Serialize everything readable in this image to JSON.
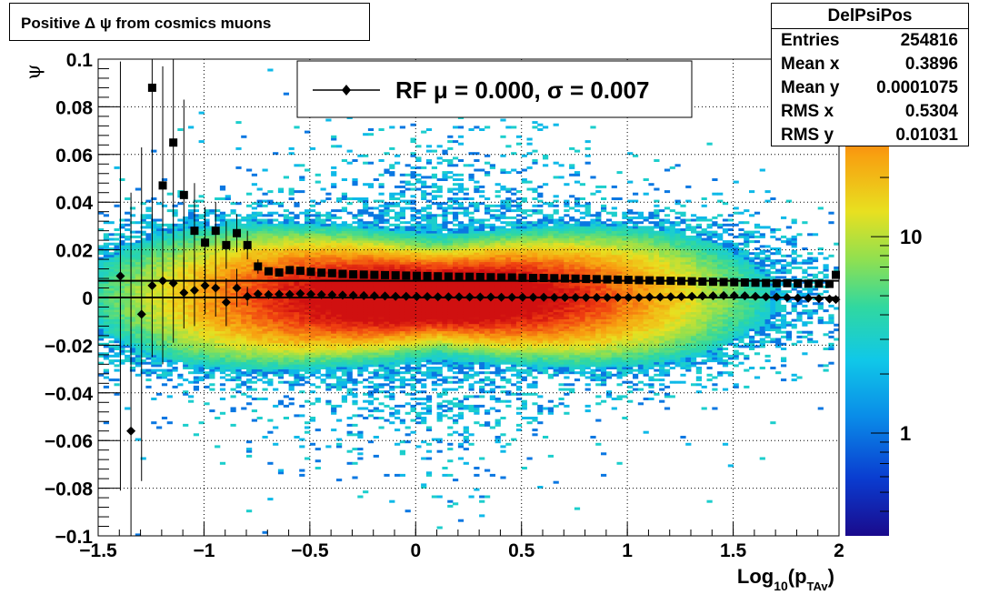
{
  "title": "Positive Δ ψ from cosmics muons",
  "stats": {
    "title": "DelPsiPos",
    "rows": [
      {
        "label": "Entries",
        "value": "254816"
      },
      {
        "label": "Mean x",
        "value": "0.3896"
      },
      {
        "label": "Mean y",
        "value": "0.0001075"
      },
      {
        "label": "RMS x",
        "value": "0.5304"
      },
      {
        "label": "RMS y",
        "value": "0.01031"
      }
    ]
  },
  "legend": {
    "label": "RF μ =  0.000, σ =   0.007"
  },
  "colors": {
    "marker": "#000000",
    "axis": "#000000",
    "grid": "#000000"
  },
  "chart_data": {
    "type": "heatmap",
    "title": "Positive Δ ψ from cosmics muons",
    "xlabel": "Log10(pTAv)",
    "xlabel_parts": {
      "main": "Log",
      "sub1": "10",
      "mid": "(p",
      "sub2": "TAv",
      "end": ")"
    },
    "ylabel": "ψ",
    "xlim": [
      -1.5,
      2
    ],
    "ylim": [
      -0.1,
      0.1
    ],
    "x_ticks": [
      -1.5,
      -1,
      -0.5,
      0,
      0.5,
      1,
      1.5,
      2
    ],
    "x_tick_labels": [
      "−1.5",
      "−1",
      "−0.5",
      "0",
      "0.5",
      "1",
      "1.5",
      "2"
    ],
    "y_ticks": [
      0.1,
      0.08,
      0.06,
      0.04,
      0.02,
      0,
      -0.02,
      -0.04,
      -0.06,
      -0.08,
      -0.1
    ],
    "y_tick_labels": [
      "0.1",
      "0.08",
      "0.06",
      "0.04",
      "0.02",
      "0",
      "−0.02",
      "−0.04",
      "−0.06",
      "−0.08",
      "−0.1"
    ],
    "grid": true,
    "colorbar": {
      "scale": "log",
      "range": [
        0.3,
        80
      ],
      "ticks": [
        1,
        10
      ],
      "tick_labels": [
        "1",
        "10"
      ]
    },
    "density_model": {
      "total_entries": 254816,
      "mean_x": 0.3896,
      "rms_x": 0.5304,
      "mean_y": 0.0001075,
      "rms_y": 0.01031
    },
    "series": [
      {
        "marker": "square",
        "x": [
          -1.245,
          -1.195,
          -1.145,
          -1.095,
          -1.045,
          -0.995,
          -0.945,
          -0.895,
          -0.845,
          -0.795,
          -0.745,
          -0.695,
          -0.645,
          -0.595,
          -0.545,
          -0.495,
          -0.445,
          -0.395,
          -0.345,
          -0.295,
          -0.245,
          -0.195,
          -0.145,
          -0.095,
          -0.045,
          0.005,
          0.055,
          0.105,
          0.155,
          0.205,
          0.255,
          0.305,
          0.355,
          0.405,
          0.455,
          0.505,
          0.555,
          0.605,
          0.655,
          0.705,
          0.755,
          0.805,
          0.855,
          0.905,
          0.955,
          1.005,
          1.055,
          1.105,
          1.155,
          1.205,
          1.255,
          1.305,
          1.355,
          1.405,
          1.455,
          1.505,
          1.555,
          1.605,
          1.655,
          1.705,
          1.755,
          1.805,
          1.855,
          1.905,
          1.955,
          1.985
        ],
        "y": [
          0.088,
          0.047,
          0.065,
          0.043,
          0.028,
          0.023,
          0.028,
          0.022,
          0.027,
          0.022,
          0.013,
          0.011,
          0.0105,
          0.0115,
          0.0112,
          0.0108,
          0.0104,
          0.0102,
          0.0099,
          0.0097,
          0.0096,
          0.0095,
          0.0094,
          0.0093,
          0.0092,
          0.0091,
          0.009,
          0.0089,
          0.0088,
          0.0087,
          0.0087,
          0.0086,
          0.0085,
          0.0084,
          0.0084,
          0.0083,
          0.0082,
          0.0082,
          0.0081,
          0.008,
          0.0079,
          0.0078,
          0.0077,
          0.0076,
          0.0075,
          0.0074,
          0.0073,
          0.0072,
          0.0071,
          0.007,
          0.0069,
          0.0068,
          0.0067,
          0.0066,
          0.0065,
          0.0064,
          0.0063,
          0.0062,
          0.0061,
          0.006,
          0.006,
          0.0059,
          0.0058,
          0.0058,
          0.0057,
          0.0095
        ],
        "err": [
          0.06,
          0.05,
          0.06,
          0.04,
          0.02,
          0.015,
          0.012,
          0.01,
          0.008,
          0.006,
          0.003
        ]
      },
      {
        "marker": "diamond",
        "x": [
          -1.395,
          -1.345,
          -1.295,
          -1.245,
          -1.195,
          -1.145,
          -1.095,
          -1.045,
          -0.995,
          -0.945,
          -0.895,
          -0.845,
          -0.795,
          -0.745,
          -0.695,
          -0.645,
          -0.595,
          -0.545,
          -0.495,
          -0.445,
          -0.395,
          -0.345,
          -0.295,
          -0.245,
          -0.195,
          -0.145,
          -0.095,
          -0.045,
          0.005,
          0.055,
          0.105,
          0.155,
          0.205,
          0.255,
          0.305,
          0.355,
          0.405,
          0.455,
          0.505,
          0.555,
          0.605,
          0.655,
          0.705,
          0.755,
          0.805,
          0.855,
          0.905,
          0.955,
          1.005,
          1.055,
          1.105,
          1.155,
          1.205,
          1.255,
          1.305,
          1.355,
          1.405,
          1.455,
          1.505,
          1.555,
          1.605,
          1.655,
          1.705,
          1.755,
          1.805,
          1.855,
          1.905,
          1.955,
          1.985
        ],
        "y": [
          0.009,
          -0.056,
          -0.007,
          0.005,
          0.007,
          0.006,
          0.002,
          0.003,
          0.005,
          0.004,
          -0.002,
          0.004,
          0.0005,
          0.0015,
          0.0012,
          0.0014,
          0.0013,
          0.0016,
          0.0014,
          0.0012,
          0.0011,
          0.001,
          0.0009,
          0.0008,
          0.0007,
          0.0006,
          0.0005,
          0.0005,
          0.0004,
          0.0004,
          0.0003,
          0.0003,
          0.0003,
          0.0002,
          0.0002,
          0.0002,
          0.0001,
          0.0001,
          0.0001,
          0.0001,
          0.0001,
          0.0,
          0.0,
          0.0,
          0.0,
          0.0,
          0.0,
          0.0,
          0.0,
          0.0,
          0.0002,
          0.0002,
          0.0003,
          0.0004,
          0.0005,
          0.0006,
          0.0007,
          0.0008,
          0.0008,
          0.0007,
          0.0005,
          0.0003,
          0.0002,
          0.0,
          -0.0002,
          -0.0003,
          -0.0005,
          -0.0006,
          -0.0008
        ],
        "err": [
          0.09,
          0.1,
          0.07,
          0.03,
          0.035,
          0.025,
          0.015,
          0.015,
          0.012,
          0.012,
          0.01,
          0.008,
          0.004
        ]
      }
    ]
  }
}
